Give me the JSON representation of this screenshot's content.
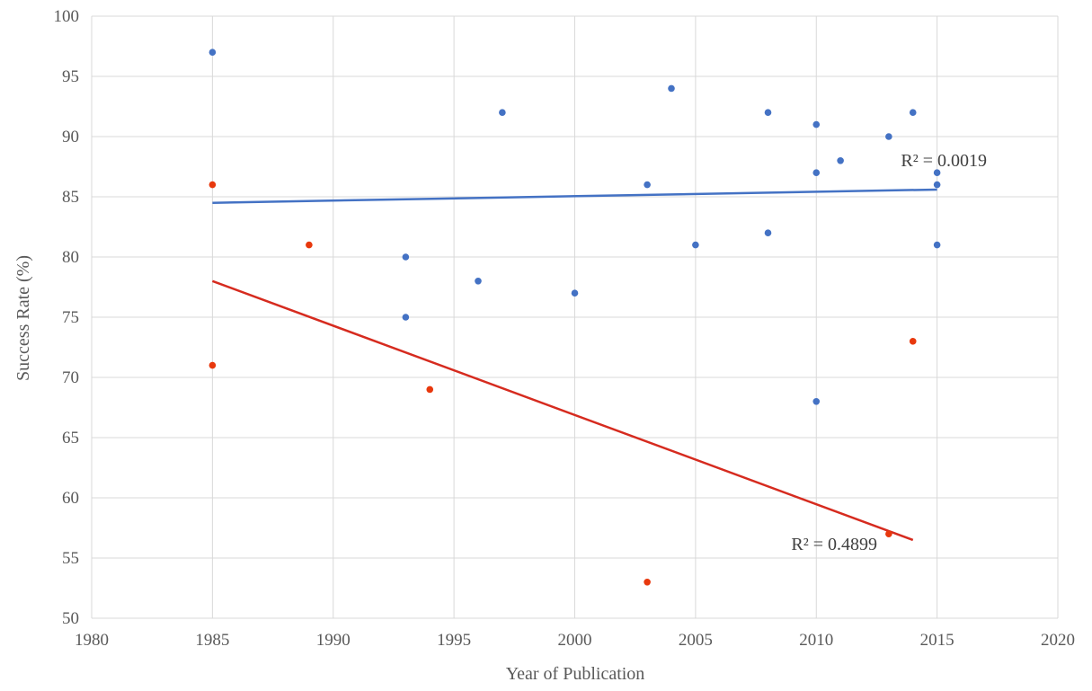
{
  "chart_data": {
    "type": "scatter",
    "title": "",
    "xlabel": "Year of Publication",
    "ylabel": "Success Rate (%)",
    "xlim": [
      1980,
      2020
    ],
    "ylim": [
      50,
      100
    ],
    "x_ticks": [
      1980,
      1985,
      1990,
      1995,
      2000,
      2005,
      2010,
      2015,
      2020
    ],
    "y_ticks": [
      50,
      55,
      60,
      65,
      70,
      75,
      80,
      85,
      90,
      95,
      100
    ],
    "grid": true,
    "series": [
      {
        "color": "#4472c4",
        "points": [
          [
            1985,
            97
          ],
          [
            1993,
            80
          ],
          [
            1993,
            75
          ],
          [
            1996,
            78
          ],
          [
            1997,
            92
          ],
          [
            2000,
            77
          ],
          [
            2003,
            86
          ],
          [
            2004,
            94
          ],
          [
            2005,
            81
          ],
          [
            2008,
            92
          ],
          [
            2008,
            82
          ],
          [
            2010,
            91
          ],
          [
            2010,
            87
          ],
          [
            2010,
            68
          ],
          [
            2011,
            88
          ],
          [
            2013,
            90
          ],
          [
            2014,
            92
          ],
          [
            2015,
            87
          ],
          [
            2015,
            86
          ],
          [
            2015,
            81
          ]
        ],
        "trendline": {
          "x": [
            1985,
            2015
          ],
          "y": [
            84.5,
            85.6
          ],
          "r2_label": "R² = 0.0019"
        }
      },
      {
        "color": "#e8380d",
        "points": [
          [
            1985,
            86
          ],
          [
            1985,
            71
          ],
          [
            1989,
            81
          ],
          [
            1994,
            69
          ],
          [
            2003,
            53
          ],
          [
            2013,
            57
          ],
          [
            2014,
            73
          ]
        ],
        "trendline": {
          "x": [
            1985,
            2014
          ],
          "y": [
            78.0,
            56.5
          ],
          "r2_label": "R² = 0.4899"
        }
      }
    ],
    "trendline_colors": [
      "#4472c4",
      "#d62b1f"
    ]
  }
}
